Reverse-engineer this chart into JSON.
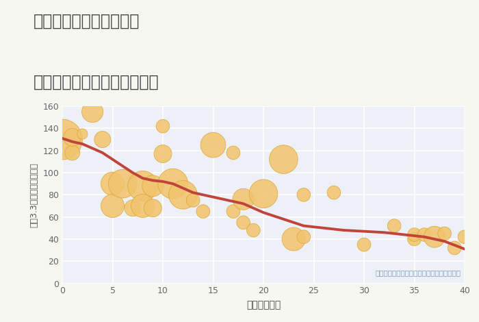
{
  "title_line1": "奈良県奈良市勝南院町の",
  "title_line2": "築年数別中古マンション価格",
  "xlabel": "築年数（年）",
  "ylabel": "坪（3.3㎡）単価（万円）",
  "annotation": "円の大きさは、取引のあった物件面積を示す",
  "bg_color": "#f7f7f2",
  "plot_bg_color": "#edf1f7",
  "grid_color": "#ffffff",
  "scatter_color": "#f2c46e",
  "scatter_edge_color": "#dba83a",
  "line_color": "#c0443a",
  "xlim": [
    0,
    40
  ],
  "ylim": [
    0,
    160
  ],
  "xticks": [
    0,
    5,
    10,
    15,
    20,
    25,
    30,
    35,
    40
  ],
  "yticks": [
    0,
    20,
    40,
    60,
    80,
    100,
    120,
    140,
    160
  ],
  "scatter_x": [
    0,
    1,
    1,
    2,
    3,
    4,
    5,
    5,
    6,
    7,
    8,
    8,
    9,
    9,
    10,
    10,
    11,
    12,
    13,
    14,
    15,
    17,
    17,
    18,
    18,
    19,
    20,
    22,
    23,
    24,
    24,
    27,
    30,
    33,
    35,
    35,
    36,
    37,
    38,
    39,
    40
  ],
  "scatter_y": [
    130,
    118,
    132,
    135,
    155,
    130,
    90,
    70,
    90,
    68,
    88,
    70,
    88,
    68,
    142,
    117,
    90,
    80,
    75,
    65,
    125,
    118,
    65,
    76,
    55,
    48,
    81,
    112,
    40,
    42,
    80,
    82,
    35,
    52,
    40,
    44,
    44,
    42,
    45,
    32,
    42
  ],
  "scatter_size": [
    1800,
    250,
    350,
    120,
    500,
    300,
    600,
    600,
    900,
    300,
    1000,
    600,
    500,
    350,
    200,
    350,
    1000,
    900,
    200,
    200,
    700,
    200,
    200,
    500,
    200,
    200,
    900,
    900,
    600,
    200,
    200,
    200,
    200,
    200,
    200,
    200,
    200,
    500,
    200,
    200,
    200
  ],
  "line_x": [
    0,
    1,
    2,
    3,
    4,
    5,
    6,
    7,
    8,
    9,
    10,
    11,
    12,
    13,
    14,
    15,
    16,
    17,
    18,
    19,
    20,
    22,
    24,
    26,
    28,
    30,
    32,
    34,
    36,
    38,
    40
  ],
  "line_y": [
    131,
    128,
    126,
    122,
    118,
    112,
    106,
    100,
    95,
    93,
    92,
    90,
    86,
    82,
    80,
    78,
    76,
    74,
    72,
    68,
    64,
    58,
    52,
    50,
    48,
    47,
    46,
    44,
    42,
    38,
    31
  ]
}
